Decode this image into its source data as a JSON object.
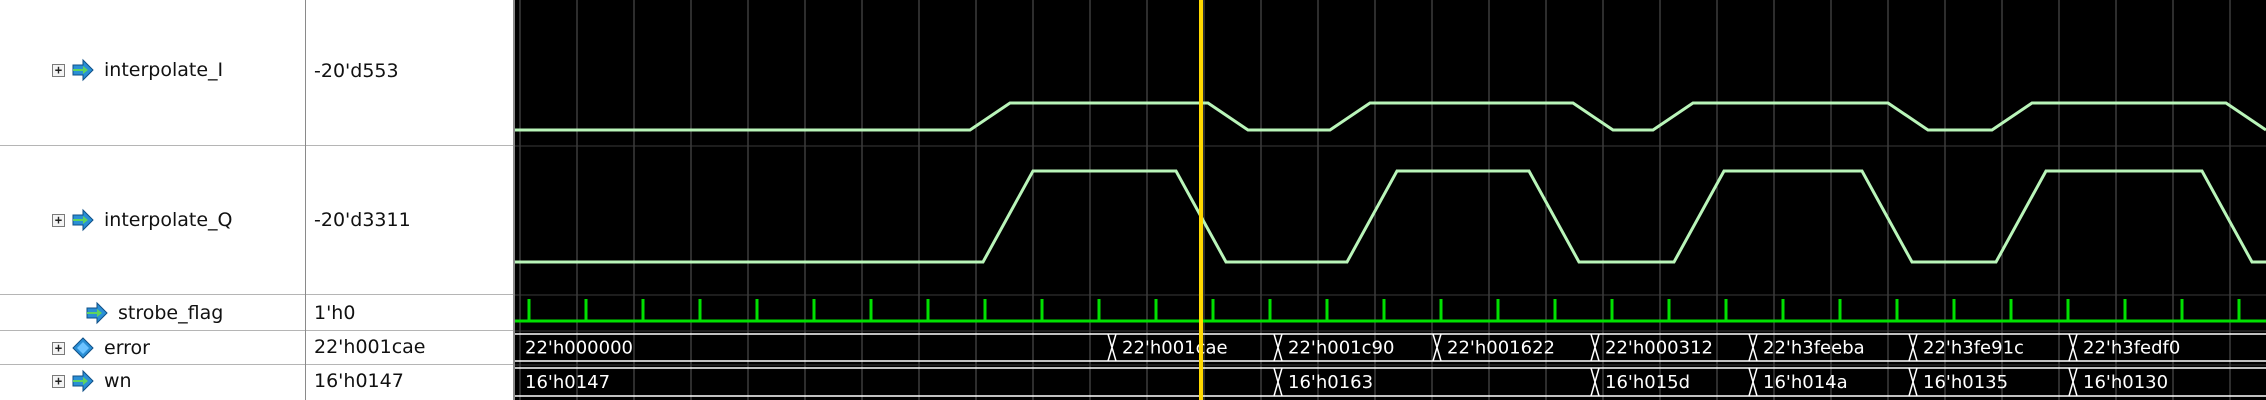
{
  "signals": [
    {
      "name": "interpolate_I",
      "value": "-20'd553",
      "expandable": true,
      "icon": "bus-arrow-icon"
    },
    {
      "name": "interpolate_Q",
      "value": "-20'd3311",
      "expandable": true,
      "icon": "bus-arrow-icon"
    },
    {
      "name": "strobe_flag",
      "value": "1'h0",
      "expandable": false,
      "icon": "wire-arrow-icon"
    },
    {
      "name": "error",
      "value": "22'h001cae",
      "expandable": true,
      "icon": "diamond-icon"
    },
    {
      "name": "wn",
      "value": "16'h0147",
      "expandable": true,
      "icon": "bus-arrow-icon"
    }
  ],
  "error_bus_labels": [
    "22'h000000",
    "22'h001cae",
    "22'h001c90",
    "22'h001622",
    "22'h000312",
    "22'h3feeba",
    "22'h3fe91c",
    "22'h3fedf0"
  ],
  "wn_bus_labels": [
    "16'h0147",
    "16'h0163",
    "16'h015d",
    "16'h014a",
    "16'h0135",
    "16'h0130"
  ],
  "colors": {
    "wave_background": "#000000",
    "analog_trace": "#b9f5b9",
    "digital_trace": "#00e000",
    "cursor": "#ffd800",
    "grid": "#5a5a5a"
  },
  "expander_glyph": "+"
}
